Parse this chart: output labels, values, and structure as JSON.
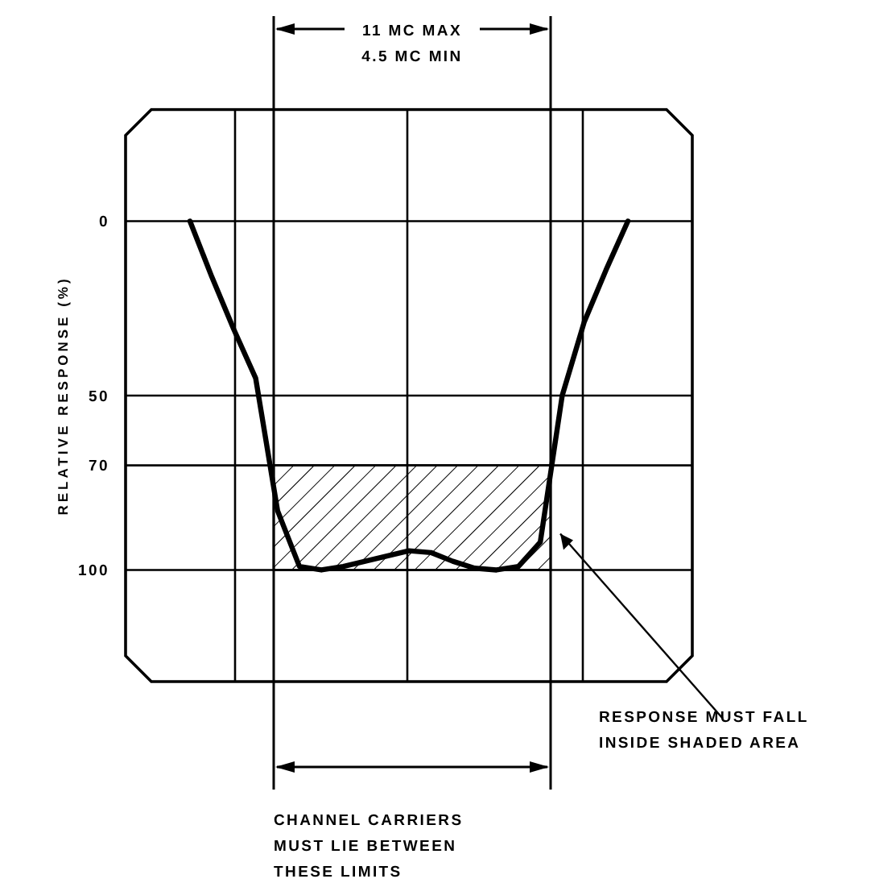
{
  "chart_data": {
    "type": "line",
    "ylabel": "RELATIVE RESPONSE (%)",
    "grid": true,
    "categories": [
      null,
      null,
      null,
      null,
      null,
      null,
      null,
      null,
      null,
      null,
      null,
      null,
      null,
      null,
      null,
      null,
      null,
      null,
      null,
      null,
      null
    ],
    "ylim": [
      132,
      -32
    ],
    "yticks": [
      0,
      50,
      70,
      100
    ],
    "series": [
      {
        "color": "#000000",
        "values": [
          0,
          16,
          31,
          45,
          83,
          99,
          100,
          99,
          97.5,
          96,
          94.5,
          95,
          97.5,
          99.5,
          100,
          99,
          92,
          50,
          29,
          14,
          0
        ]
      }
    ],
    "bands": [
      {
        "axis": "y",
        "from": 70,
        "to": 100,
        "label": "RESPONSE MUST FALL INSIDE SHADED AREA"
      }
    ],
    "annotations": [
      "11 MC MAX",
      "4.5 MC MIN",
      "CHANNEL CARRIERS MUST LIE BETWEEN THESE LIMITS"
    ]
  }
}
